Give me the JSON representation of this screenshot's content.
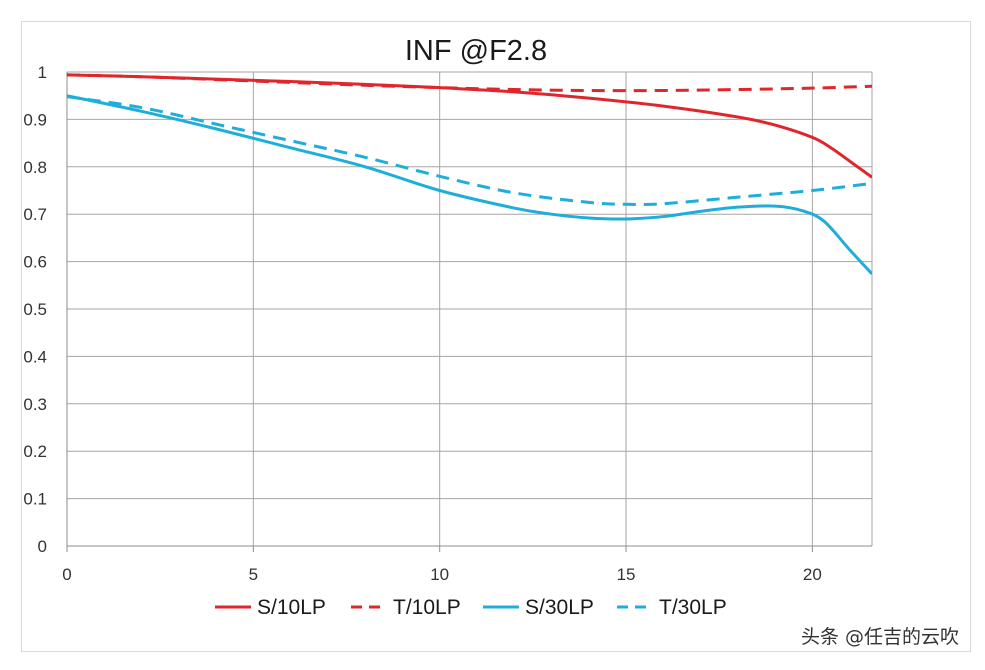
{
  "watermark": "头条 @任吉的云吹",
  "chart_data": {
    "type": "line",
    "title": "INF @F2.8",
    "xlabel": "",
    "ylabel": "",
    "xlim": [
      0,
      21.6
    ],
    "ylim": [
      0,
      1
    ],
    "x_ticks": [
      0,
      5,
      10,
      15,
      20
    ],
    "y_ticks": [
      0,
      0.1,
      0.2,
      0.3,
      0.4,
      0.5,
      0.6,
      0.7,
      0.8,
      0.9,
      1
    ],
    "grid": true,
    "legend_position": "bottom",
    "series": [
      {
        "name": "S/10LP",
        "color": "#e0262b",
        "dash": "solid",
        "points": [
          [
            0,
            0.994
          ],
          [
            2,
            0.99
          ],
          [
            4,
            0.985
          ],
          [
            6,
            0.98
          ],
          [
            8,
            0.974
          ],
          [
            10,
            0.967
          ],
          [
            12,
            0.958
          ],
          [
            14,
            0.945
          ],
          [
            16,
            0.928
          ],
          [
            18,
            0.905
          ],
          [
            19,
            0.888
          ],
          [
            20,
            0.862
          ],
          [
            20.5,
            0.84
          ],
          [
            21,
            0.812
          ],
          [
            21.6,
            0.778
          ]
        ]
      },
      {
        "name": "T/10LP",
        "color": "#e0262b",
        "dash": "dashed",
        "points": [
          [
            0,
            0.994
          ],
          [
            2,
            0.99
          ],
          [
            4,
            0.984
          ],
          [
            6,
            0.978
          ],
          [
            8,
            0.972
          ],
          [
            10,
            0.967
          ],
          [
            12,
            0.963
          ],
          [
            14,
            0.961
          ],
          [
            16,
            0.961
          ],
          [
            18,
            0.963
          ],
          [
            20,
            0.966
          ],
          [
            21.6,
            0.97
          ]
        ]
      },
      {
        "name": "S/30LP",
        "color": "#1faed9",
        "dash": "solid",
        "points": [
          [
            0,
            0.95
          ],
          [
            2,
            0.917
          ],
          [
            4,
            0.88
          ],
          [
            6,
            0.84
          ],
          [
            8,
            0.8
          ],
          [
            10,
            0.75
          ],
          [
            12,
            0.713
          ],
          [
            13,
            0.7
          ],
          [
            14,
            0.692
          ],
          [
            15,
            0.69
          ],
          [
            16,
            0.695
          ],
          [
            17,
            0.706
          ],
          [
            18,
            0.715
          ],
          [
            19,
            0.717
          ],
          [
            19.7,
            0.708
          ],
          [
            20.3,
            0.686
          ],
          [
            21,
            0.625
          ],
          [
            21.6,
            0.574
          ]
        ]
      },
      {
        "name": "T/30LP",
        "color": "#1faed9",
        "dash": "dashed",
        "points": [
          [
            0,
            0.948
          ],
          [
            2,
            0.925
          ],
          [
            4,
            0.89
          ],
          [
            6,
            0.855
          ],
          [
            8,
            0.82
          ],
          [
            10,
            0.78
          ],
          [
            12,
            0.745
          ],
          [
            14,
            0.725
          ],
          [
            15,
            0.721
          ],
          [
            16,
            0.722
          ],
          [
            18,
            0.736
          ],
          [
            20,
            0.75
          ],
          [
            21.6,
            0.765
          ]
        ]
      }
    ]
  }
}
